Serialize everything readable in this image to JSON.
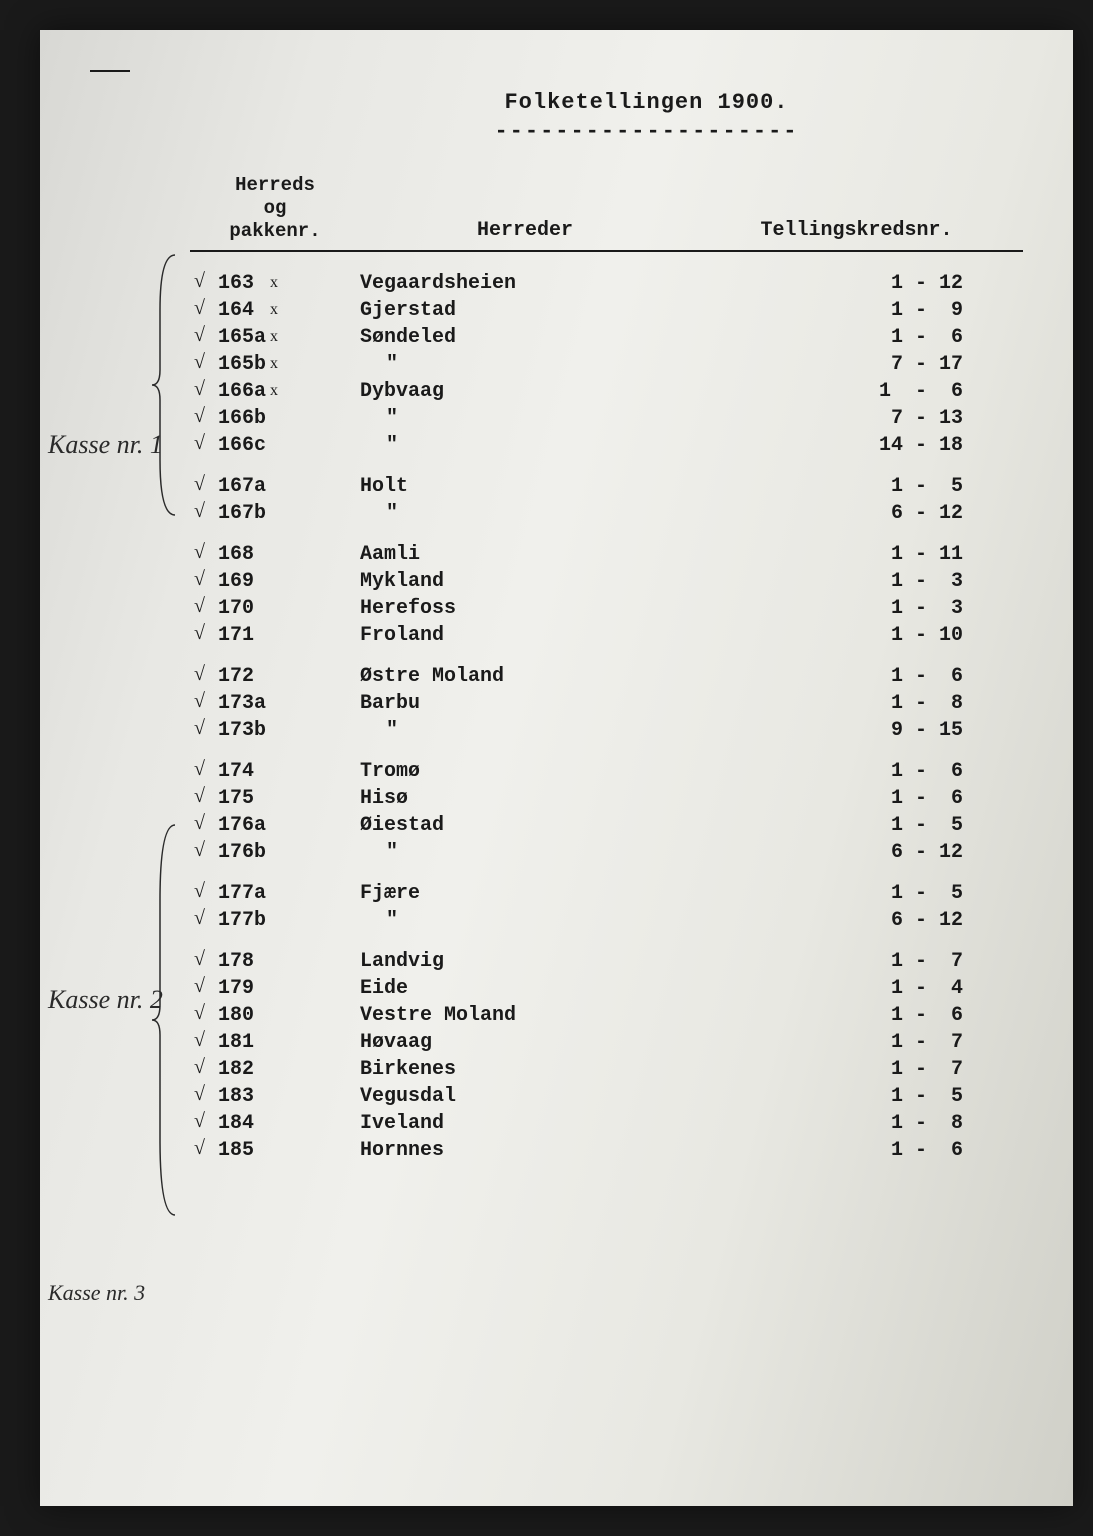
{
  "title": "Folketellingen 1900.",
  "headers": {
    "col1_line1": "Herreds",
    "col1_line2": "og",
    "col1_line3": "pakkenr.",
    "col2": "Herreder",
    "col3": "Tellingskredsnr."
  },
  "annotations": {
    "kasse1": "Kasse nr. 1",
    "kasse2": "Kasse nr. 2",
    "kasse3": "Kasse nr. 3"
  },
  "groups": [
    [
      {
        "chk": "√",
        "x": "x",
        "nr": "163",
        "herred": "Vegaardsheien",
        "kreds": "1 - 12"
      },
      {
        "chk": "√",
        "x": "x",
        "nr": "164",
        "herred": "Gjerstad",
        "kreds": "1 -  9"
      },
      {
        "chk": "√",
        "x": "x",
        "nr": "165a",
        "herred": "Søndeled",
        "kreds": "1 -  6"
      },
      {
        "chk": "√",
        "x": "x",
        "nr": "165b",
        "herred": "\"",
        "kreds": "7 - 17"
      },
      {
        "chk": "√",
        "x": "x",
        "nr": "166a",
        "herred": "Dybvaag",
        "kreds": "1  -  6"
      },
      {
        "chk": "√",
        "x": "",
        "nr": "166b",
        "herred": "\"",
        "kreds": "7 - 13"
      },
      {
        "chk": "√",
        "x": "",
        "nr": "166c",
        "herred": "\"",
        "kreds": "14 - 18"
      }
    ],
    [
      {
        "chk": "√",
        "x": "",
        "nr": "167a",
        "herred": "Holt",
        "kreds": "1 -  5"
      },
      {
        "chk": "√",
        "x": "",
        "nr": "167b",
        "herred": "\"",
        "kreds": "6 - 12"
      }
    ],
    [
      {
        "chk": "√",
        "x": "",
        "nr": "168",
        "herred": "Aamli",
        "kreds": "1 - 11"
      },
      {
        "chk": "√",
        "x": "",
        "nr": "169",
        "herred": "Mykland",
        "kreds": "1 -  3"
      },
      {
        "chk": "√",
        "x": "",
        "nr": "170",
        "herred": "Herefoss",
        "kreds": "1 -  3"
      },
      {
        "chk": "√",
        "x": "",
        "nr": "171",
        "herred": "Froland",
        "kreds": "1 - 10"
      }
    ],
    [
      {
        "chk": "√",
        "x": "",
        "nr": "172",
        "herred": "Østre Moland",
        "kreds": "1 -  6"
      },
      {
        "chk": "√",
        "x": "",
        "nr": "173a",
        "herred": "Barbu",
        "kreds": "1 -  8"
      },
      {
        "chk": "√",
        "x": "",
        "nr": "173b",
        "herred": "\"",
        "kreds": "9 - 15"
      }
    ],
    [
      {
        "chk": "√",
        "x": "",
        "nr": "174",
        "herred": "Tromø",
        "kreds": "1 -  6"
      },
      {
        "chk": "√",
        "x": "",
        "nr": "175",
        "herred": "Hisø",
        "kreds": "1 -  6"
      },
      {
        "chk": "√",
        "x": "",
        "nr": "176a",
        "herred": "Øiestad",
        "kreds": "1 -  5"
      },
      {
        "chk": "√",
        "x": "",
        "nr": "176b",
        "herred": "\"",
        "kreds": "6 - 12"
      }
    ],
    [
      {
        "chk": "√",
        "x": "",
        "nr": "177a",
        "herred": "Fjære",
        "kreds": "1 -  5"
      },
      {
        "chk": "√",
        "x": "",
        "nr": "177b",
        "herred": "\"",
        "kreds": "6 - 12"
      }
    ],
    [
      {
        "chk": "√",
        "x": "",
        "nr": "178",
        "herred": "Landvig",
        "kreds": "1 -  7"
      },
      {
        "chk": "√",
        "x": "",
        "nr": "179",
        "herred": "Eide",
        "kreds": "1 -  4"
      },
      {
        "chk": "√",
        "x": "",
        "nr": "180",
        "herred": "Vestre Moland",
        "kreds": "1 -  6"
      },
      {
        "chk": "√",
        "x": "",
        "nr": "181",
        "herred": "Høvaag",
        "kreds": "1 -  7"
      },
      {
        "chk": "√",
        "x": "",
        "nr": "182",
        "herred": "Birkenes",
        "kreds": "1 -  7"
      },
      {
        "chk": "√",
        "x": "",
        "nr": "183",
        "herred": "Vegusdal",
        "kreds": "1 -  5"
      },
      {
        "chk": "√",
        "x": "",
        "nr": "184",
        "herred": "Iveland",
        "kreds": "1 -  8"
      },
      {
        "chk": "√",
        "x": "",
        "nr": "185",
        "herred": "Hornnes",
        "kreds": "1 -  6"
      }
    ]
  ]
}
